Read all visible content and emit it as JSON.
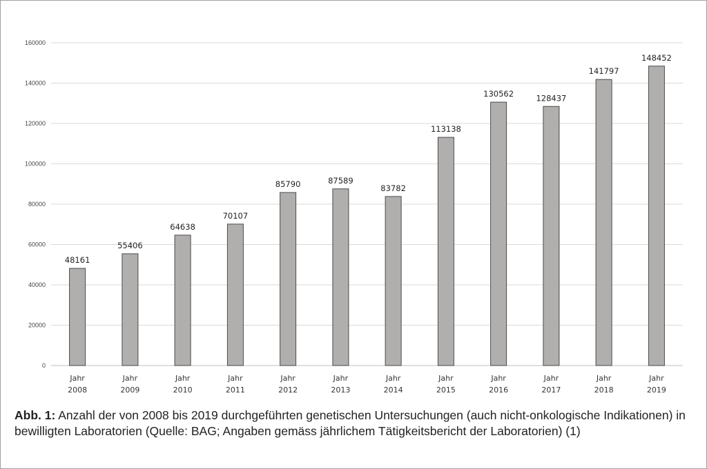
{
  "caption": {
    "label": "Abb. 1:",
    "text": "Anzahl der von 2008 bis 2019 durchgeführten genetischen Untersuchungen (auch nicht-onkologische Indikationen) in bewilligten Laboratorien (Quelle: BAG; Angaben gemäss jährlichem Tätigkeitsbericht der Laboratorien) (1)"
  },
  "chart_data": {
    "type": "bar",
    "title": "",
    "xlabel": "",
    "ylabel": "",
    "categories": [
      [
        "Jahr",
        "2008"
      ],
      [
        "Jahr",
        "2009"
      ],
      [
        "Jahr",
        "2010"
      ],
      [
        "Jahr",
        "2011"
      ],
      [
        "Jahr",
        "2012"
      ],
      [
        "Jahr",
        "2013"
      ],
      [
        "Jahr",
        "2014"
      ],
      [
        "Jahr",
        "2015"
      ],
      [
        "Jahr",
        "2016"
      ],
      [
        "Jahr",
        "2017"
      ],
      [
        "Jahr",
        "2018"
      ],
      [
        "Jahr",
        "2019"
      ]
    ],
    "values": [
      48161,
      55406,
      64638,
      70107,
      85790,
      87589,
      83782,
      113138,
      130562,
      128437,
      141797,
      148452
    ],
    "ylim": [
      0,
      160000
    ],
    "yticks": [
      0,
      20000,
      40000,
      60000,
      80000,
      100000,
      120000,
      140000,
      160000
    ],
    "grid": true,
    "legend": "none",
    "colors": {
      "bar_fill": "#b1afad",
      "bar_stroke": "#4a4a4a",
      "grid": "#d9d9d9"
    }
  }
}
